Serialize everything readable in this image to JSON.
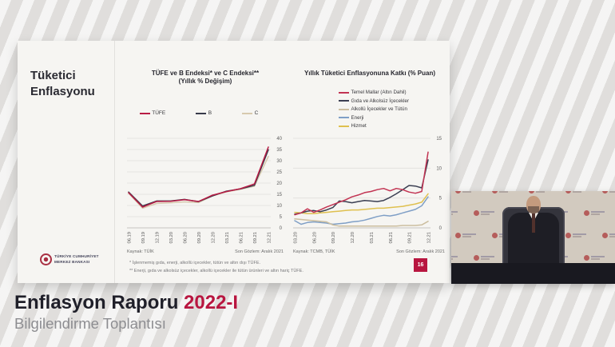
{
  "colors": {
    "accent_red": "#b81640",
    "slide_bg": "#f6f5f2",
    "banner_dark": "#1f1f29",
    "banner_gray": "#8d8d91"
  },
  "banner": {
    "title_main": "Enflasyon Raporu",
    "title_accent": "2022-I",
    "subtitle": "Bilgilendirme Toplantısı"
  },
  "slide": {
    "section_title": "Tüketici Enflasyonu",
    "page_number": "16",
    "footnote1": "* İşlenmemiş gıda, enerji, alkollü içecekler, tütün ve altın dışı TÜFE.",
    "footnote2": "** Enerji, gıda ve alkolsüz içecekler, alkollü içecekler ile tütün ürünleri ve altın hariç TÜFE.",
    "logo_line1": "TÜRKİYE CUMHURİYET",
    "logo_line2": "MERKEZ BANKASI"
  },
  "chart_data": [
    {
      "type": "line",
      "title": "TÜFE ve B Endeksi* ve C Endeksi**",
      "subtitle": "(Yıllık % Değişim)",
      "categories": [
        "06.19",
        "09.19",
        "12.19",
        "03.20",
        "06.20",
        "09.20",
        "12.20",
        "03.21",
        "06.21",
        "09.21",
        "12.21"
      ],
      "ylim": [
        0,
        40
      ],
      "yticks": [
        0,
        5,
        10,
        15,
        20,
        25,
        30,
        35,
        40
      ],
      "grid": true,
      "legend_position": "top",
      "source": "Kaynak: TÜİK",
      "note": "Son Gözlem: Aralık 2021",
      "series": [
        {
          "name": "TÜFE",
          "color": "#b81c45",
          "values": [
            15.7,
            9.3,
            11.8,
            11.9,
            12.6,
            11.8,
            14.6,
            16.2,
            17.5,
            19.6,
            36.1
          ]
        },
        {
          "name": "B",
          "color": "#383b4b",
          "values": [
            16.0,
            9.8,
            12.0,
            12.0,
            12.7,
            11.7,
            14.3,
            16.4,
            17.4,
            19.0,
            34.9
          ]
        },
        {
          "name": "C",
          "color": "#d7c9ae",
          "values": [
            15.5,
            8.8,
            10.9,
            11.2,
            11.6,
            11.3,
            14.3,
            16.1,
            17.2,
            18.6,
            31.9
          ]
        }
      ]
    },
    {
      "type": "line",
      "title": "Yıllık Tüketici Enflasyonuna Katkı (% Puan)",
      "subtitle": "",
      "x_count": 22,
      "x_tick_indices": [
        0,
        3,
        6,
        9,
        12,
        15,
        18,
        21
      ],
      "x_tick_labels": [
        "03.20",
        "06.20",
        "09.20",
        "12.20",
        "03.21",
        "06.21",
        "09.21",
        "12.21"
      ],
      "ylim": [
        0,
        15
      ],
      "yticks": [
        0,
        5,
        10,
        15
      ],
      "grid": true,
      "legend_position": "top-left",
      "source": "Kaynak: TCMB, TÜİK",
      "note": "Son Gözlem: Aralık 2021",
      "series": [
        {
          "name": "Temel Mallar (Altın Dahil)",
          "color": "#c23352",
          "values": [
            2.2,
            2.5,
            3.2,
            2.6,
            3.0,
            3.5,
            3.9,
            4.3,
            4.7,
            5.2,
            5.5,
            5.9,
            6.1,
            6.4,
            6.6,
            6.2,
            6.6,
            6.4,
            6.0,
            5.8,
            6.1,
            12.7
          ]
        },
        {
          "name": "Gıda ve Alkolsüz İçecekler",
          "color": "#3b3f52",
          "values": [
            2.3,
            2.5,
            2.8,
            2.9,
            2.7,
            3.0,
            3.4,
            4.5,
            4.4,
            4.2,
            4.4,
            4.6,
            4.5,
            4.4,
            4.6,
            5.1,
            5.7,
            6.4,
            7.1,
            7.0,
            6.7,
            11.4
          ]
        },
        {
          "name": "Alkollü İçecekler ve Tütün",
          "color": "#ccbe9f",
          "values": [
            1.5,
            1.4,
            1.3,
            1.2,
            1.1,
            1.0,
            0.5,
            0.3,
            0.3,
            0.3,
            0.3,
            0.3,
            0.3,
            0.3,
            0.3,
            0.3,
            0.3,
            0.4,
            0.4,
            0.4,
            0.5,
            1.1
          ]
        },
        {
          "name": "Enerji",
          "color": "#7f9fc6",
          "values": [
            1.2,
            0.6,
            0.9,
            1.0,
            0.9,
            0.8,
            0.6,
            0.7,
            0.8,
            1.0,
            1.1,
            1.3,
            1.6,
            1.9,
            2.1,
            2.0,
            2.2,
            2.5,
            2.8,
            3.1,
            3.7,
            5.2
          ]
        },
        {
          "name": "Hizmet",
          "color": "#dfc04f",
          "values": [
            2.6,
            2.5,
            2.4,
            2.4,
            2.5,
            2.6,
            2.7,
            2.8,
            2.9,
            3.0,
            3.0,
            3.1,
            3.2,
            3.3,
            3.3,
            3.4,
            3.5,
            3.6,
            3.8,
            4.0,
            4.3,
            5.7
          ]
        }
      ]
    }
  ]
}
